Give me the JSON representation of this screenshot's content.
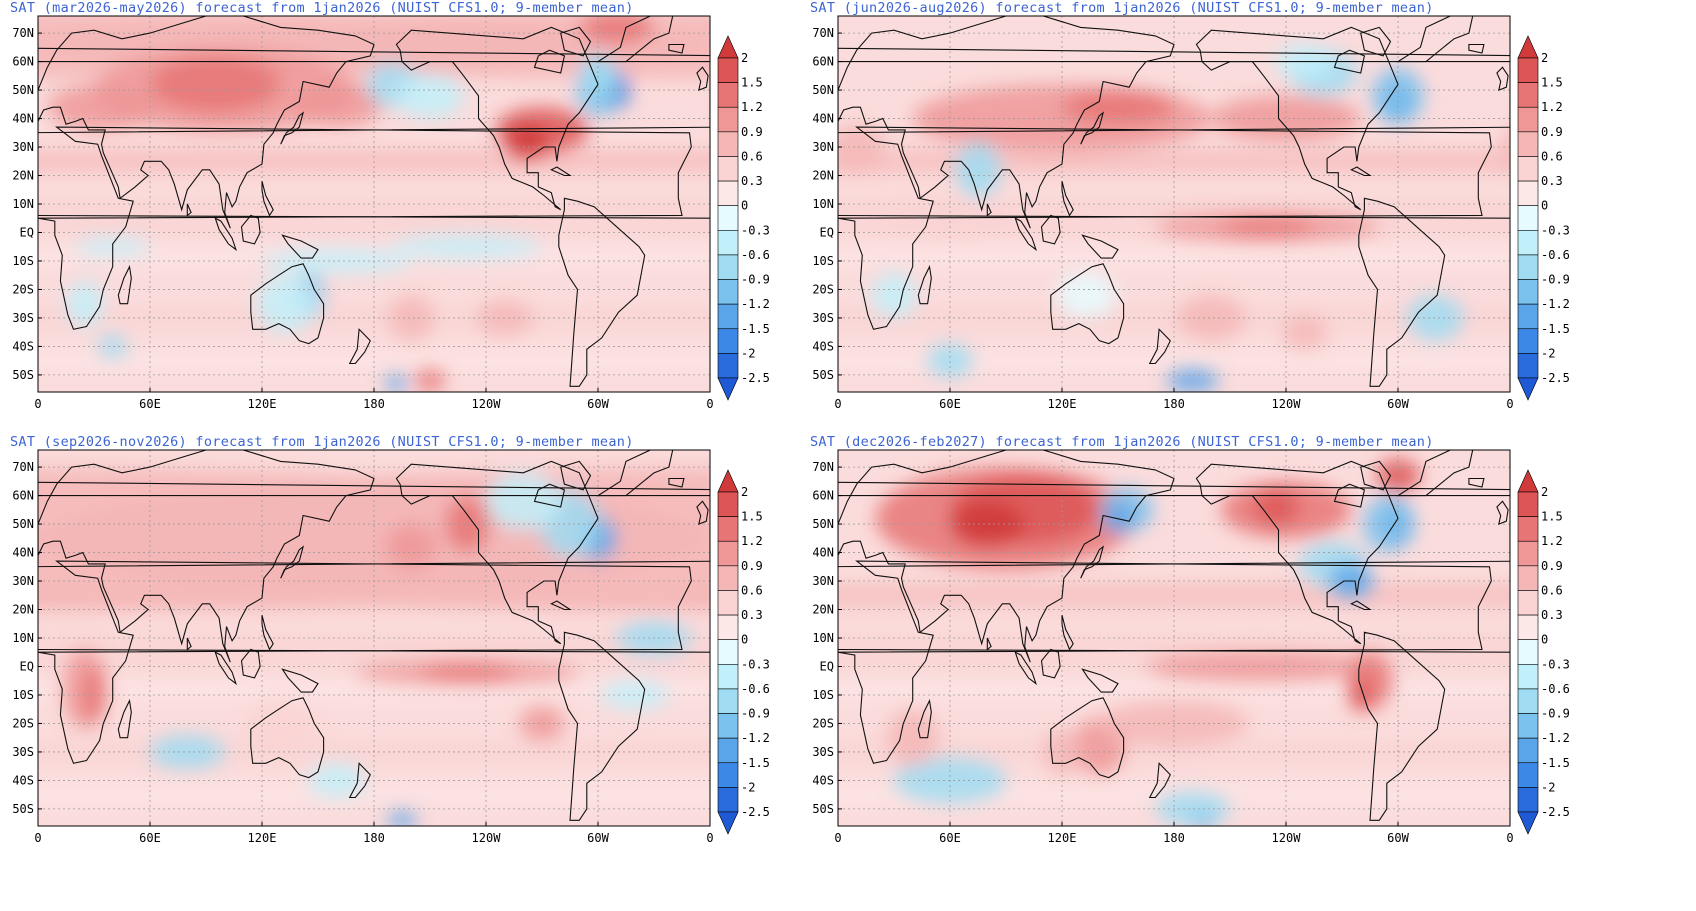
{
  "panels": [
    {
      "title": "SAT (mar2026-may2026) forecast from 1jan2026 (NUIST CFS1.0; 9-member mean)",
      "pattern": "mam"
    },
    {
      "title": "SAT (jun2026-aug2026) forecast from 1jan2026 (NUIST CFS1.0; 9-member mean)",
      "pattern": "jja"
    },
    {
      "title": "SAT (sep2026-nov2026) forecast from 1jan2026 (NUIST CFS1.0; 9-member mean)",
      "pattern": "son"
    },
    {
      "title": "SAT (dec2026-feb2027) forecast from 1jan2026 (NUIST CFS1.0; 9-member mean)",
      "pattern": "djf"
    }
  ],
  "lat_labels": [
    "70N",
    "60N",
    "50N",
    "40N",
    "30N",
    "20N",
    "10N",
    "EQ",
    "10S",
    "20S",
    "30S",
    "40S",
    "50S"
  ],
  "lat_values": [
    70,
    60,
    50,
    40,
    30,
    20,
    10,
    0,
    -10,
    -20,
    -30,
    -40,
    -50
  ],
  "lat_range": [
    -56,
    76
  ],
  "lon_labels": [
    "0",
    "60E",
    "120E",
    "180",
    "120W",
    "60W",
    "0"
  ],
  "lon_values": [
    0,
    60,
    120,
    180,
    240,
    300,
    360
  ],
  "colorbar": {
    "levels": [
      "2",
      "1.5",
      "1.2",
      "0.9",
      "0.6",
      "0.3",
      "0",
      "-0.3",
      "-0.6",
      "-0.9",
      "-1.2",
      "-1.5",
      "-2",
      "-2.5"
    ],
    "colors": [
      "#d03a3a",
      "#dd5555",
      "#e77575",
      "#ef9696",
      "#f5b6b6",
      "#fad3d3",
      "#fde8e8",
      "#e6fbff",
      "#c2f0fa",
      "#9fdcf2",
      "#7cc2ee",
      "#5aa4ea",
      "#3c88e6",
      "#2b6cdc",
      "#1f5ad6"
    ]
  }
}
